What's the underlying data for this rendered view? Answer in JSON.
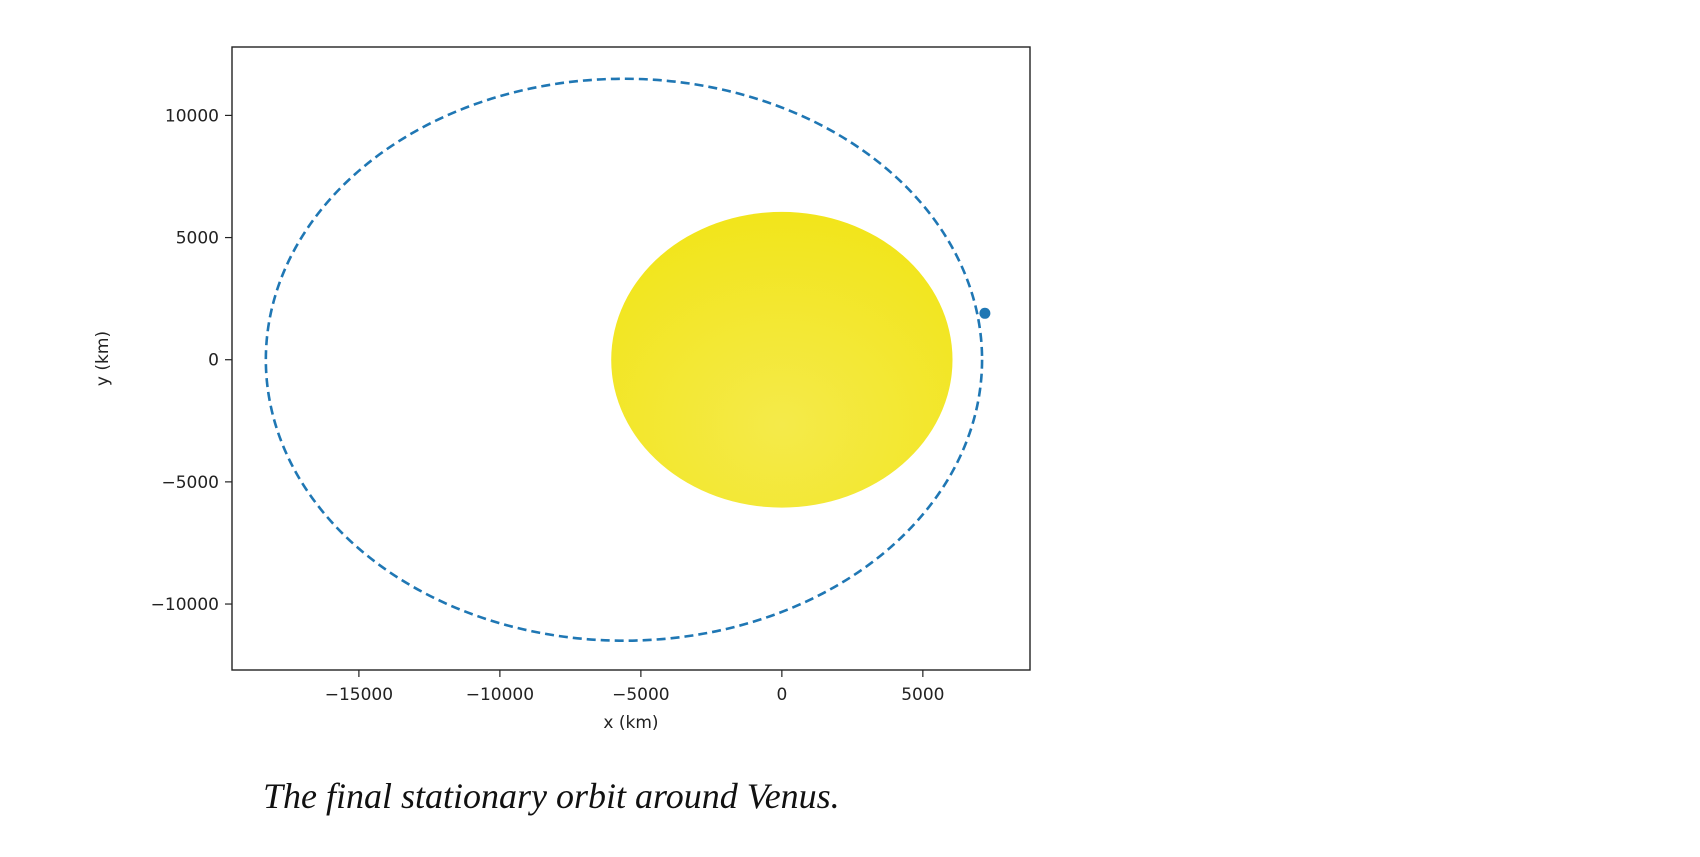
{
  "chart_data": {
    "type": "scatter",
    "xlabel": "x (km)",
    "ylabel": "y (km)",
    "xlim": [
      -19500,
      8800
    ],
    "ylim": [
      -12700,
      12800
    ],
    "xticks": [
      -15000,
      -10000,
      -5000,
      0,
      5000
    ],
    "xtick_labels": [
      "−15000",
      "−10000",
      "−5000",
      "0",
      "5000"
    ],
    "yticks": [
      -10000,
      -5000,
      0,
      5000,
      10000
    ],
    "ytick_labels": [
      "−10000",
      "−5000",
      "0",
      "5000",
      "10000"
    ],
    "grid": false,
    "series": [
      {
        "kind": "planet-disk",
        "center": [
          0,
          0
        ],
        "radius_km": 6052,
        "color": "#f2e51c"
      },
      {
        "kind": "orbit",
        "style": "dashed",
        "center": [
          -5600,
          0
        ],
        "semi_major_km": 12700,
        "semi_minor_km": 11500,
        "color": "#1f77b4"
      },
      {
        "kind": "spacecraft",
        "x": [
          7200
        ],
        "y": [
          1900
        ],
        "color": "#1f77b4"
      }
    ]
  },
  "caption": "The final stationary orbit around Venus."
}
